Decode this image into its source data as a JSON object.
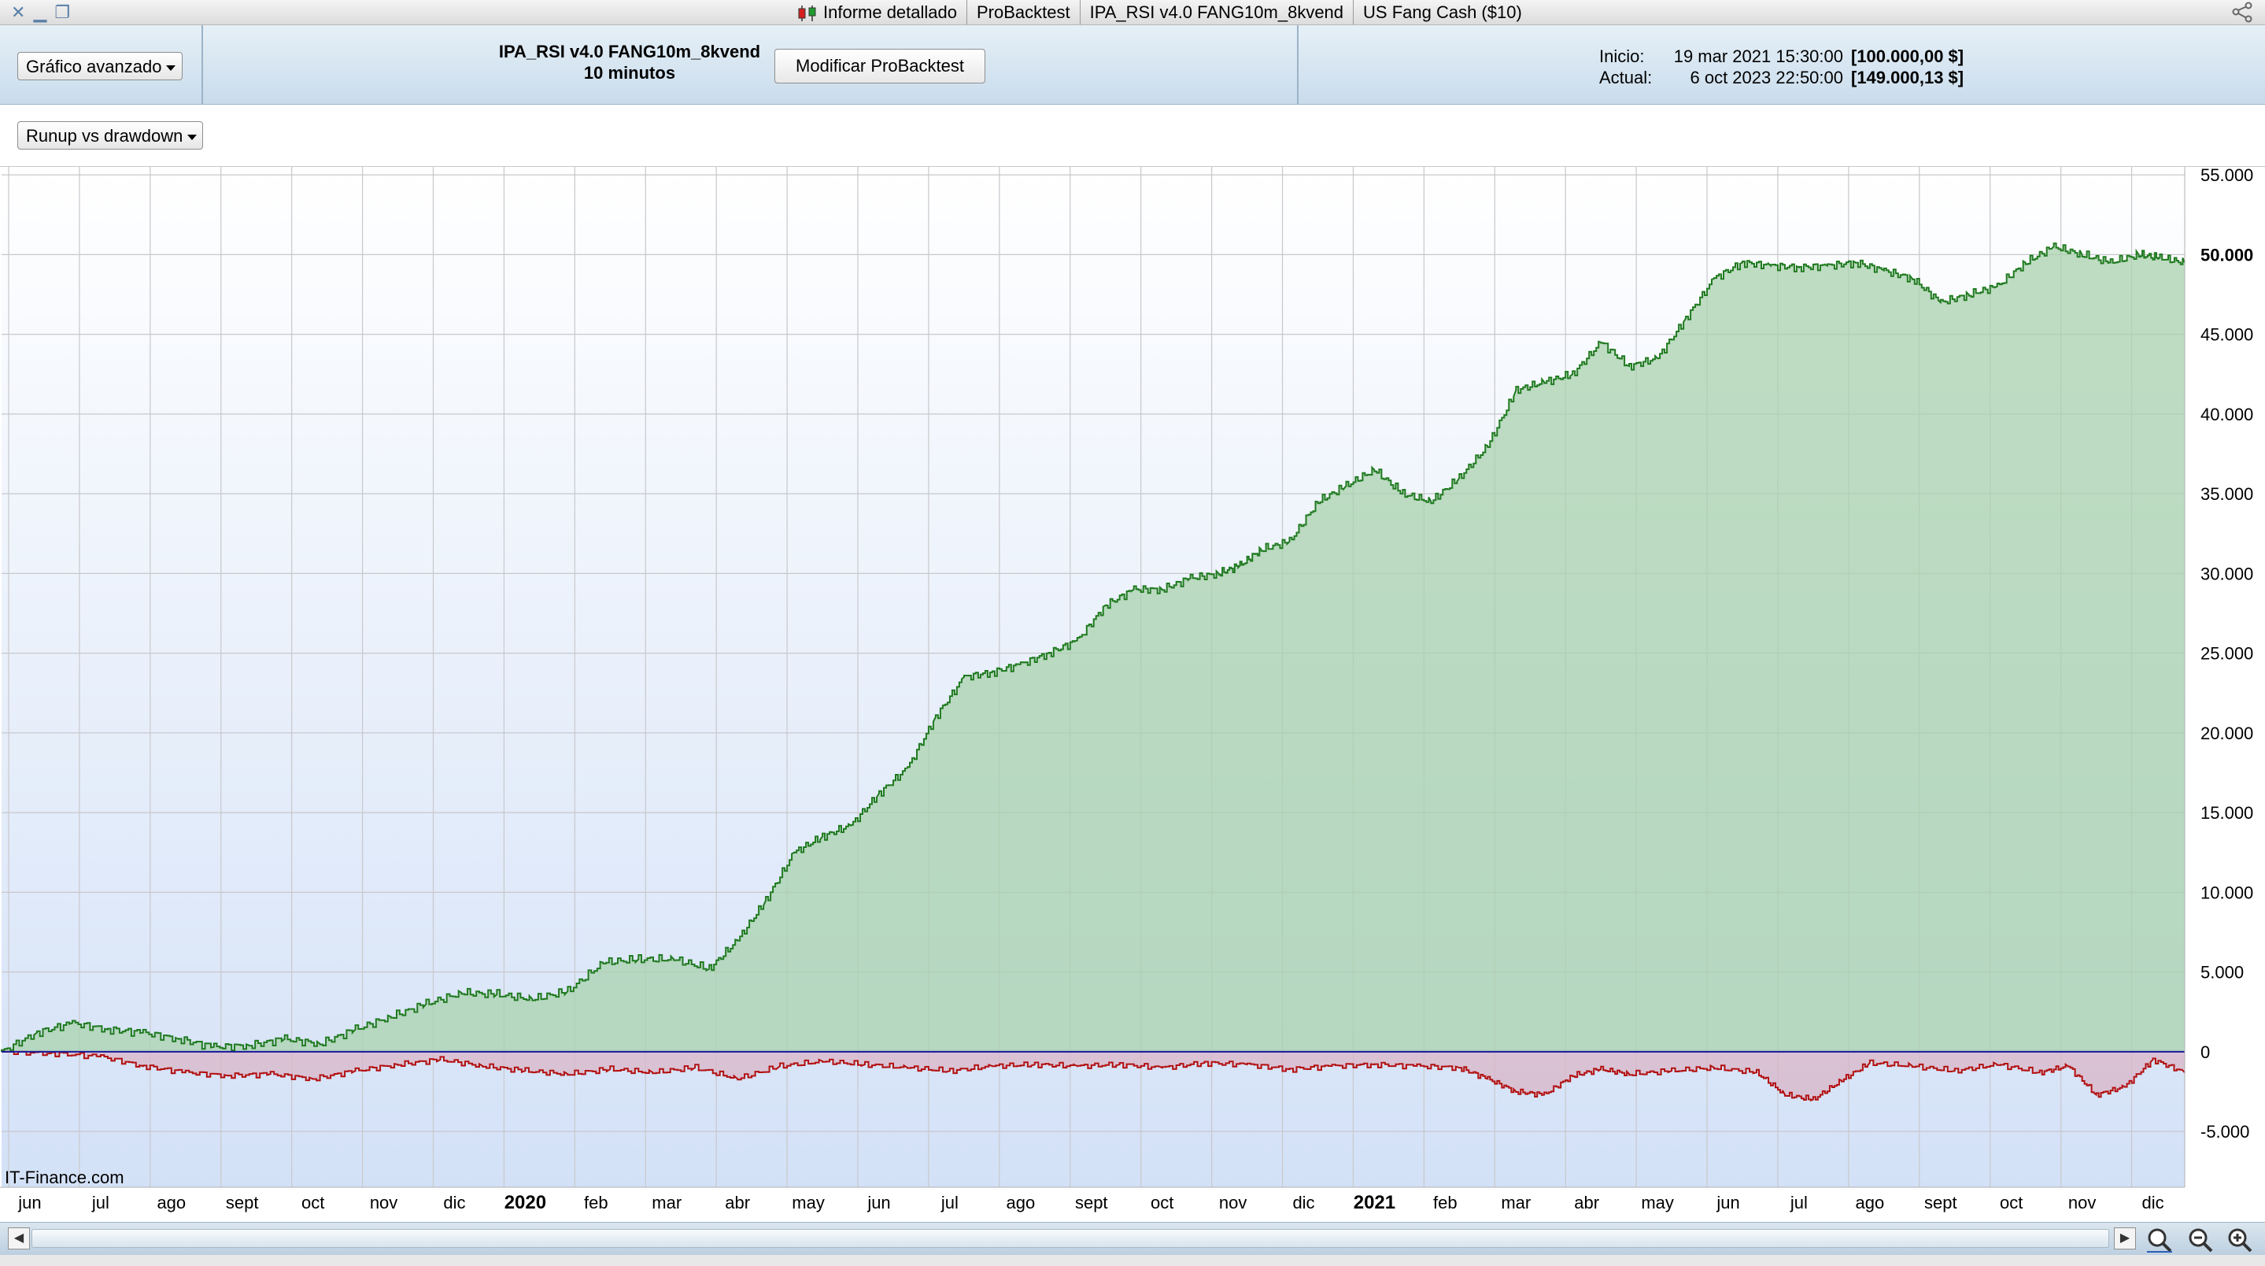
{
  "window": {
    "tabs": [
      "Informe detallado",
      "ProBacktest",
      "IPA_RSI v4.0 FANG10m_8kvend",
      "US Fang Cash ($10)"
    ]
  },
  "toolbar": {
    "chart_mode": "Gráfico avanzado",
    "strategy_name": "IPA_RSI v4.0 FANG10m_8kvend",
    "timeframe": "10 minutos",
    "modify_button": "Modificar ProBacktest",
    "start_label": "Inicio:",
    "start_date": "19 mar 2021 15:30:00",
    "start_value": "[100.000,00 $]",
    "current_label": "Actual:",
    "current_date": "6 oct 2023 22:50:00",
    "current_value": "[149.000,13 $]"
  },
  "view_selector": "Runup vs drawdown",
  "chart_data": {
    "type": "area",
    "watermark": "IT-Finance.com",
    "x_labels": [
      {
        "t": 0.2,
        "label": "jun",
        "bold": false
      },
      {
        "t": 1.2,
        "label": "jul",
        "bold": false
      },
      {
        "t": 2.2,
        "label": "ago",
        "bold": false
      },
      {
        "t": 3.2,
        "label": "sept",
        "bold": false
      },
      {
        "t": 4.2,
        "label": "oct",
        "bold": false
      },
      {
        "t": 5.2,
        "label": "nov",
        "bold": false
      },
      {
        "t": 6.2,
        "label": "dic",
        "bold": false
      },
      {
        "t": 7.2,
        "label": "2020",
        "bold": true
      },
      {
        "t": 8.2,
        "label": "feb",
        "bold": false
      },
      {
        "t": 9.2,
        "label": "mar",
        "bold": false
      },
      {
        "t": 10.2,
        "label": "abr",
        "bold": false
      },
      {
        "t": 11.2,
        "label": "may",
        "bold": false
      },
      {
        "t": 12.2,
        "label": "jun",
        "bold": false
      },
      {
        "t": 13.2,
        "label": "jul",
        "bold": false
      },
      {
        "t": 14.2,
        "label": "ago",
        "bold": false
      },
      {
        "t": 15.2,
        "label": "sept",
        "bold": false
      },
      {
        "t": 16.2,
        "label": "oct",
        "bold": false
      },
      {
        "t": 17.2,
        "label": "nov",
        "bold": false
      },
      {
        "t": 18.2,
        "label": "dic",
        "bold": false
      },
      {
        "t": 19.2,
        "label": "2021",
        "bold": true
      },
      {
        "t": 20.2,
        "label": "feb",
        "bold": false
      },
      {
        "t": 21.2,
        "label": "mar",
        "bold": false
      },
      {
        "t": 22.2,
        "label": "abr",
        "bold": false
      },
      {
        "t": 23.2,
        "label": "may",
        "bold": false
      },
      {
        "t": 24.2,
        "label": "jun",
        "bold": false
      },
      {
        "t": 25.2,
        "label": "jul",
        "bold": false
      },
      {
        "t": 26.2,
        "label": "ago",
        "bold": false
      },
      {
        "t": 27.2,
        "label": "sept",
        "bold": false
      },
      {
        "t": 28.2,
        "label": "oct",
        "bold": false
      },
      {
        "t": 29.2,
        "label": "nov",
        "bold": false
      },
      {
        "t": 30.2,
        "label": "dic",
        "bold": false
      }
    ],
    "x_range": [
      -0.2,
      30.65
    ],
    "y_range": [
      -8500,
      55500
    ],
    "y_ticks": [
      {
        "v": 55000,
        "label": "55.000",
        "bold": false
      },
      {
        "v": 50000,
        "label": "50.000",
        "bold": true
      },
      {
        "v": 45000,
        "label": "45.000",
        "bold": false
      },
      {
        "v": 40000,
        "label": "40.000",
        "bold": false
      },
      {
        "v": 35000,
        "label": "35.000",
        "bold": false
      },
      {
        "v": 30000,
        "label": "30.000",
        "bold": false
      },
      {
        "v": 25000,
        "label": "25.000",
        "bold": false
      },
      {
        "v": 20000,
        "label": "20.000",
        "bold": false
      },
      {
        "v": 15000,
        "label": "15.000",
        "bold": false
      },
      {
        "v": 10000,
        "label": "10.000",
        "bold": false
      },
      {
        "v": 5000,
        "label": "5.000",
        "bold": false
      },
      {
        "v": 0,
        "label": "0",
        "bold": false
      },
      {
        "v": -5000,
        "label": "-5.000",
        "bold": false
      }
    ],
    "grid": true,
    "series": [
      {
        "key": "runup",
        "color": "#1f7a1f",
        "fill": "#a9d1ae",
        "x": [
          -0.2,
          0.3,
          0.8,
          1.3,
          1.8,
          2.3,
          2.8,
          3.3,
          3.8,
          4.3,
          4.8,
          5.3,
          5.8,
          6.3,
          6.8,
          7.3,
          7.8,
          8.3,
          8.8,
          9.3,
          9.8,
          10.2,
          10.6,
          11.0,
          11.4,
          11.8,
          12.2,
          12.6,
          13.0,
          13.4,
          13.8,
          14.2,
          14.6,
          15.0,
          15.4,
          15.8,
          16.2,
          16.6,
          17.0,
          17.3,
          17.6,
          18.0,
          18.4,
          18.8,
          19.2,
          19.6,
          20.0,
          20.4,
          20.8,
          21.2,
          21.6,
          22.0,
          22.4,
          22.8,
          23.2,
          23.6,
          24.0,
          24.4,
          24.8,
          25.2,
          25.6,
          26.0,
          26.4,
          26.8,
          27.2,
          27.6,
          28.0,
          28.4,
          28.8,
          29.2,
          29.6,
          30.0,
          30.3,
          30.65
        ],
        "y": [
          0,
          1200,
          1800,
          1400,
          1200,
          800,
          300,
          400,
          800,
          500,
          1400,
          2200,
          3000,
          3700,
          3600,
          3300,
          3800,
          5600,
          5800,
          5800,
          5200,
          7000,
          9500,
          12500,
          13500,
          14200,
          16200,
          17800,
          21000,
          23500,
          23800,
          24300,
          25000,
          25800,
          28000,
          29000,
          29000,
          29700,
          30000,
          30500,
          31500,
          32000,
          34500,
          35500,
          36500,
          35000,
          34500,
          36000,
          38000,
          41500,
          42000,
          42500,
          44500,
          43000,
          43500,
          46000,
          48500,
          49500,
          49300,
          49200,
          49300,
          49500,
          49000,
          48500,
          47000,
          47500,
          48000,
          49500,
          50500,
          50000,
          49500,
          50000,
          49800,
          49500
        ]
      },
      {
        "key": "drawdown",
        "color": "#b21010",
        "fill": "#d9b5c8",
        "x": [
          -0.2,
          0.5,
          1.2,
          1.8,
          2.4,
          3.0,
          3.6,
          4.2,
          4.8,
          5.4,
          6.0,
          6.6,
          7.2,
          7.8,
          8.4,
          9.0,
          9.6,
          10.2,
          10.8,
          11.4,
          12.0,
          12.6,
          13.2,
          13.8,
          14.4,
          15.0,
          15.6,
          16.2,
          16.8,
          17.4,
          18.0,
          18.6,
          19.2,
          19.8,
          20.4,
          20.8,
          21.2,
          21.6,
          22.0,
          22.4,
          22.8,
          23.4,
          24.0,
          24.6,
          25.0,
          25.4,
          25.8,
          26.2,
          26.8,
          27.4,
          28.0,
          28.6,
          29.0,
          29.4,
          29.8,
          30.2,
          30.65
        ],
        "y": [
          0,
          -100,
          -300,
          -900,
          -1300,
          -1500,
          -1400,
          -1700,
          -1200,
          -800,
          -500,
          -900,
          -1200,
          -1400,
          -1100,
          -1300,
          -1000,
          -1700,
          -900,
          -600,
          -800,
          -1000,
          -1200,
          -900,
          -800,
          -900,
          -800,
          -1000,
          -700,
          -800,
          -1100,
          -900,
          -800,
          -900,
          -1000,
          -1700,
          -2500,
          -2700,
          -1500,
          -1100,
          -1400,
          -1200,
          -1000,
          -1300,
          -2700,
          -3000,
          -1800,
          -700,
          -900,
          -1200,
          -800,
          -1300,
          -900,
          -2700,
          -2200,
          -500,
          -1300
        ]
      }
    ]
  }
}
